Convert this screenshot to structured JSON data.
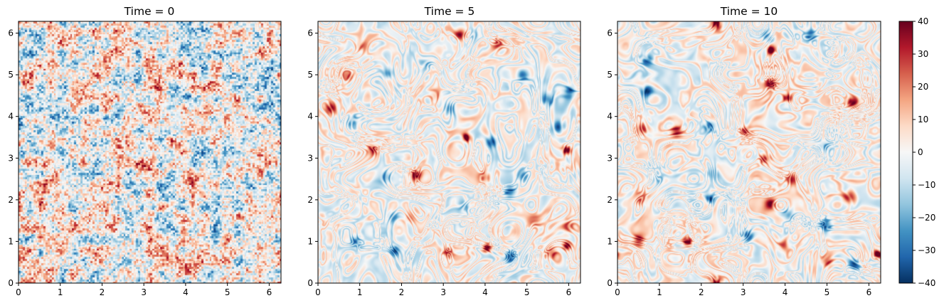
{
  "chart_data": [
    {
      "type": "heatmap",
      "title": "Time = 0",
      "xlabel": "",
      "ylabel": "",
      "xlim": [
        0,
        6.283
      ],
      "ylim": [
        0,
        6.283
      ],
      "xticks": [
        "0",
        "1",
        "2",
        "3",
        "4",
        "5",
        "6"
      ],
      "yticks": [
        "0",
        "1",
        "2",
        "3",
        "4",
        "5",
        "6"
      ],
      "colormap": "RdBu_r",
      "pattern": "noise",
      "value_range": [
        -40,
        40
      ]
    },
    {
      "type": "heatmap",
      "title": "Time = 5",
      "xlabel": "",
      "ylabel": "",
      "xlim": [
        0,
        6.283
      ],
      "ylim": [
        0,
        6.283
      ],
      "xticks": [
        "0",
        "1",
        "2",
        "3",
        "4",
        "5",
        "6"
      ],
      "yticks": [
        "0",
        "1",
        "2",
        "3",
        "4",
        "5",
        "6"
      ],
      "colormap": "RdBu_r",
      "pattern": "vortices",
      "value_range": [
        -40,
        40
      ],
      "vortices": [
        {
          "x": 0.7,
          "y": 5.0,
          "s": 22
        },
        {
          "x": 1.65,
          "y": 5.05,
          "s": -28
        },
        {
          "x": 3.4,
          "y": 6.0,
          "s": 28
        },
        {
          "x": 4.3,
          "y": 5.75,
          "s": 25
        },
        {
          "x": 4.9,
          "y": 5.0,
          "s": -30
        },
        {
          "x": 5.5,
          "y": 4.4,
          "s": -25
        },
        {
          "x": 6.0,
          "y": 4.6,
          "s": -28
        },
        {
          "x": 3.15,
          "y": 4.2,
          "s": -20
        },
        {
          "x": 4.15,
          "y": 3.4,
          "s": -28
        },
        {
          "x": 3.55,
          "y": 3.5,
          "s": 38
        },
        {
          "x": 5.95,
          "y": 3.2,
          "s": 38
        },
        {
          "x": 2.35,
          "y": 2.6,
          "s": 30
        },
        {
          "x": 3.95,
          "y": 2.55,
          "s": 22
        },
        {
          "x": 1.6,
          "y": 2.55,
          "s": -20
        },
        {
          "x": 4.6,
          "y": 2.2,
          "s": -28
        },
        {
          "x": 1.8,
          "y": 1.6,
          "s": -18
        },
        {
          "x": 0.9,
          "y": 1.0,
          "s": -20
        },
        {
          "x": 1.85,
          "y": 0.8,
          "s": -28
        },
        {
          "x": 3.1,
          "y": 0.75,
          "s": 22
        },
        {
          "x": 4.05,
          "y": 0.85,
          "s": 38
        },
        {
          "x": 4.6,
          "y": 0.65,
          "s": -28
        },
        {
          "x": 5.6,
          "y": 0.75,
          "s": 18
        },
        {
          "x": 6.0,
          "y": 1.4,
          "s": 15
        },
        {
          "x": 5.95,
          "y": 0.9,
          "s": 32
        },
        {
          "x": 0.8,
          "y": 3.9,
          "s": -16
        },
        {
          "x": 5.75,
          "y": 3.75,
          "s": -22
        },
        {
          "x": 2.8,
          "y": 4.5,
          "s": 16
        },
        {
          "x": 0.3,
          "y": 4.2,
          "s": 26
        },
        {
          "x": 1.3,
          "y": 3.2,
          "s": 26
        },
        {
          "x": 2.6,
          "y": 5.3,
          "s": -12
        },
        {
          "x": 3.75,
          "y": 5.95,
          "s": -14
        },
        {
          "x": 5.2,
          "y": 1.5,
          "s": 18
        },
        {
          "x": 2.2,
          "y": 1.55,
          "s": 14
        },
        {
          "x": 1.0,
          "y": 5.7,
          "s": 14
        },
        {
          "x": 3.5,
          "y": 1.8,
          "s": -12
        },
        {
          "x": 4.9,
          "y": 2.6,
          "s": -14
        }
      ]
    },
    {
      "type": "heatmap",
      "title": "Time = 10",
      "xlabel": "",
      "ylabel": "",
      "xlim": [
        0,
        6.283
      ],
      "ylim": [
        0,
        6.283
      ],
      "xticks": [
        "0",
        "1",
        "2",
        "3",
        "4",
        "5",
        "6"
      ],
      "yticks": [
        "0",
        "1",
        "2",
        "3",
        "4",
        "5",
        "6"
      ],
      "colormap": "RdBu_r",
      "pattern": "vortices",
      "value_range": [
        -40,
        40
      ],
      "vortices": [
        {
          "x": 2.35,
          "y": 6.2,
          "s": 22
        },
        {
          "x": 3.55,
          "y": 5.95,
          "s": -22
        },
        {
          "x": 3.65,
          "y": 5.6,
          "s": 38
        },
        {
          "x": 4.6,
          "y": 5.95,
          "s": -25
        },
        {
          "x": 0.7,
          "y": 5.35,
          "s": -24
        },
        {
          "x": 0.7,
          "y": 4.6,
          "s": -28
        },
        {
          "x": 3.65,
          "y": 4.8,
          "s": 30
        },
        {
          "x": 5.6,
          "y": 4.35,
          "s": 30
        },
        {
          "x": 1.4,
          "y": 3.65,
          "s": 28
        },
        {
          "x": 2.2,
          "y": 3.75,
          "s": -24
        },
        {
          "x": 3.05,
          "y": 3.65,
          "s": 22
        },
        {
          "x": 0.55,
          "y": 3.7,
          "s": 20
        },
        {
          "x": 4.95,
          "y": 3.3,
          "s": -14
        },
        {
          "x": 2.2,
          "y": 2.05,
          "s": -32
        },
        {
          "x": 3.65,
          "y": 1.9,
          "s": 30
        },
        {
          "x": 4.05,
          "y": 4.45,
          "s": 32
        },
        {
          "x": 0.5,
          "y": 1.05,
          "s": 28
        },
        {
          "x": 1.65,
          "y": 1.0,
          "s": 38
        },
        {
          "x": 3.1,
          "y": 1.15,
          "s": -24
        },
        {
          "x": 4.95,
          "y": 1.4,
          "s": -28
        },
        {
          "x": 5.65,
          "y": 0.45,
          "s": -24
        },
        {
          "x": 6.2,
          "y": 0.7,
          "s": 36
        },
        {
          "x": 5.5,
          "y": 2.05,
          "s": 26
        },
        {
          "x": 4.05,
          "y": 1.65,
          "s": -26
        },
        {
          "x": 0.55,
          "y": 2.05,
          "s": 18
        },
        {
          "x": 3.95,
          "y": 0.9,
          "s": 18
        },
        {
          "x": 5.0,
          "y": 0.55,
          "s": 24
        },
        {
          "x": 4.15,
          "y": 2.5,
          "s": 22
        },
        {
          "x": 3.5,
          "y": 3.0,
          "s": 24
        },
        {
          "x": 2.3,
          "y": 0.05,
          "s": 16
        },
        {
          "x": 1.0,
          "y": 2.5,
          "s": -12
        },
        {
          "x": 2.3,
          "y": 2.65,
          "s": -12
        }
      ]
    }
  ],
  "colorbar": {
    "min": -40,
    "max": 40,
    "ticks": [
      "40",
      "30",
      "20",
      "10",
      "0",
      "−10",
      "−20",
      "−30",
      "−40"
    ],
    "colors": [
      "#053061",
      "#2166ac",
      "#4393c3",
      "#92c5de",
      "#d1e5f0",
      "#f7f7f7",
      "#fddbc7",
      "#f4a582",
      "#d6604d",
      "#b2182b",
      "#67001f"
    ]
  }
}
